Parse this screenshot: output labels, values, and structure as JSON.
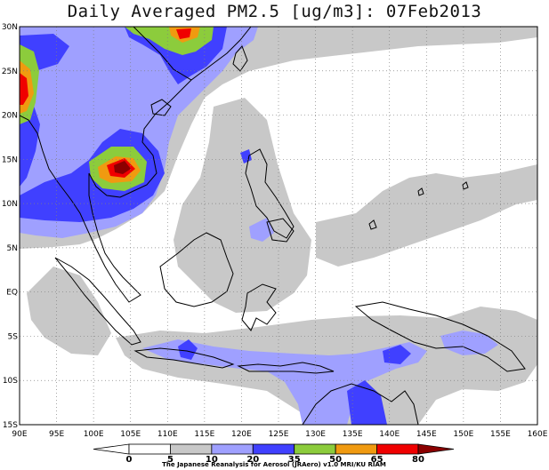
{
  "title": "Daily Averaged PM2.5 [ug/m3]: 07Feb2013",
  "credit": "The Japanese Reanalysis for Aerosol (JRAero) v1.0 MRI/KU RIAM",
  "axes": {
    "lat_labels": [
      "30N",
      "25N",
      "20N",
      "15N",
      "10N",
      "5N",
      "EQ",
      "5S",
      "10S",
      "15S"
    ],
    "lon_labels": [
      "90E",
      "95E",
      "100E",
      "105E",
      "110E",
      "115E",
      "120E",
      "125E",
      "130E",
      "135E",
      "140E",
      "145E",
      "150E",
      "155E",
      "160E"
    ],
    "lon_range": [
      90,
      160
    ],
    "lat_range": [
      -15,
      30
    ],
    "grid": "dotted"
  },
  "colorbar": {
    "levels": [
      "0",
      "5",
      "10",
      "20",
      "35",
      "50",
      "65",
      "80"
    ],
    "colors": [
      "#ffffff",
      "#ffffff",
      "#c8c8c8",
      "#9fa0ff",
      "#4040ff",
      "#8ccc3c",
      "#f09a10",
      "#f00000",
      "#8b0000"
    ]
  },
  "colors": {
    "gray": "#c8c8c8",
    "light_blue": "#9fa0ff",
    "blue": "#4040ff",
    "green": "#8ccc3c",
    "orange": "#f09a10",
    "red": "#f00000",
    "dark_red": "#8b0000"
  }
}
